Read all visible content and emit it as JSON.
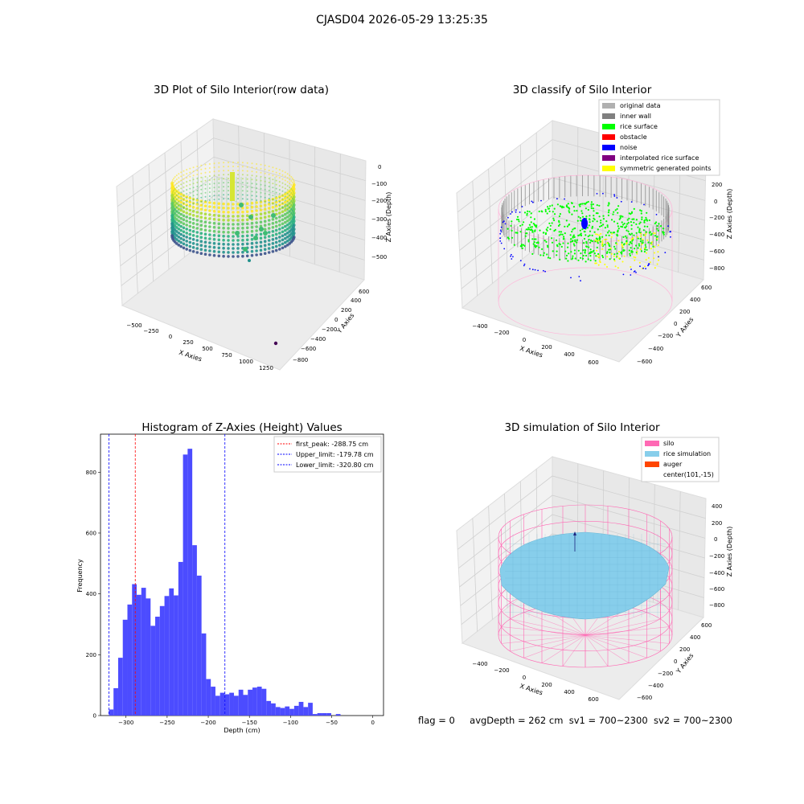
{
  "suptitle": "CJASD04 2026-05-29 13:25:35",
  "colors": {
    "hist_bar": "#4c4cff",
    "peak_line": "#ff0000",
    "limit_line": "#0000ff",
    "silo": "#ff69b4",
    "rice": "#87ceeb",
    "auger": "#ff4500",
    "grid_pane": "#f2f2f2",
    "grid_line": "#d0d0d0"
  },
  "status": {
    "flag": "flag = 0",
    "avg_depth": "avgDepth = 262 cm",
    "sv1": "sv1 = 700~2300",
    "sv2": "sv2 = 700~2300"
  },
  "chart_data": [
    {
      "type": "scatter",
      "subtype": "3d",
      "title": "3D Plot of Silo Interior(row data)",
      "xlabel": "X Axies",
      "ylabel": "Y Axies",
      "zlabel": "Z Axies (Depth)",
      "x_ticks": [
        "−500",
        "−250",
        "0",
        "250",
        "500",
        "750",
        "1000",
        "1250"
      ],
      "y_ticks": [
        "600",
        "400",
        "200",
        "0",
        "−200",
        "−400",
        "−600",
        "−800"
      ],
      "z_ticks": [
        "0",
        "−100",
        "−200",
        "−300",
        "−400",
        "−500"
      ],
      "colormap": "viridis",
      "grid": true
    },
    {
      "type": "scatter",
      "subtype": "3d",
      "title": "3D classify of Silo Interior",
      "xlabel": "X Axies",
      "ylabel": "Y Axies",
      "zlabel": "Z Axies (Depth)",
      "x_ticks": [
        "−400",
        "−200",
        "0",
        "200",
        "400",
        "600"
      ],
      "y_ticks": [
        "600",
        "400",
        "200",
        "0",
        "−200",
        "−400",
        "−600"
      ],
      "z_ticks": [
        "200",
        "0",
        "−200",
        "−400",
        "−600",
        "−800"
      ],
      "legend_position": "top-right",
      "legend": [
        {
          "label": "original data",
          "color": "#b0b0b0"
        },
        {
          "label": "inner wall",
          "color": "#808080"
        },
        {
          "label": "rice surface",
          "color": "#00ff00"
        },
        {
          "label": "obstacle",
          "color": "#ff0000"
        },
        {
          "label": "noise",
          "color": "#0000ff"
        },
        {
          "label": "interpolated rice surface",
          "color": "#800080"
        },
        {
          "label": "symmetric generated points",
          "color": "#ffff00"
        }
      ],
      "grid": true
    },
    {
      "type": "bar",
      "subtype": "histogram",
      "title": "Histogram of Z-Axies (Height) Values",
      "xlabel": "Depth (cm)",
      "ylabel": "Frequency",
      "xlim": [
        -331,
        13
      ],
      "ylim": [
        0,
        925
      ],
      "x_ticks": [
        -300,
        -250,
        -200,
        -150,
        -100,
        -50,
        0
      ],
      "y_ticks": [
        0,
        200,
        400,
        600,
        800
      ],
      "bin_start": -320.8,
      "bin_width": 5.63,
      "values": [
        20,
        90,
        190,
        315,
        365,
        432,
        397,
        420,
        385,
        295,
        325,
        360,
        393,
        418,
        395,
        505,
        858,
        877,
        560,
        460,
        270,
        120,
        95,
        65,
        75,
        70,
        75,
        65,
        85,
        68,
        85,
        92,
        95,
        88,
        48,
        40,
        28,
        25,
        30,
        22,
        32,
        45,
        28,
        42,
        5,
        8,
        8,
        8,
        0,
        5
      ],
      "vlines": [
        {
          "x": -288.75,
          "label": "first_peak: -288.75 cm",
          "color": "#ff0000"
        },
        {
          "x": -179.78,
          "label": "Upper_limit: -179.78 cm",
          "color": "#0000ff"
        },
        {
          "x": -320.8,
          "label": "Lower_limit: -320.80 cm",
          "color": "#0000ff"
        }
      ],
      "legend_position": "top-right",
      "grid": false
    },
    {
      "type": "surface",
      "subtype": "3d",
      "title": "3D simulation of Silo Interior",
      "xlabel": "X Axies",
      "ylabel": "Y Axies",
      "zlabel": "Z Axies (Depth)",
      "x_ticks": [
        "−400",
        "−200",
        "0",
        "200",
        "400",
        "600"
      ],
      "y_ticks": [
        "600",
        "400",
        "200",
        "0",
        "−200",
        "−400",
        "−600"
      ],
      "z_ticks": [
        "400",
        "200",
        "0",
        "−200",
        "−400",
        "−600",
        "−800"
      ],
      "legend_position": "top-right",
      "legend": [
        {
          "label": "silo",
          "color": "#ff69b4"
        },
        {
          "label": "rice simulation",
          "color": "#87ceeb"
        },
        {
          "label": "auger",
          "color": "#ff4500"
        },
        {
          "label": "center(101,-15)",
          "color": ""
        }
      ],
      "grid": true
    }
  ]
}
